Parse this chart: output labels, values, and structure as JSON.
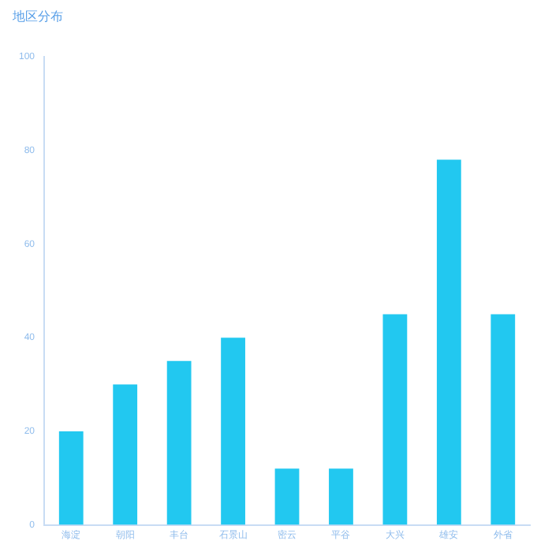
{
  "chart_data": {
    "type": "bar",
    "title": "地区分布",
    "categories": [
      "海淀",
      "朝阳",
      "丰台",
      "石景山",
      "密云",
      "平谷",
      "大兴",
      "雄安",
      "外省"
    ],
    "values": [
      20,
      30,
      35,
      40,
      12,
      12,
      45,
      78,
      45
    ],
    "color": "#22c8f0",
    "ylim": [
      0,
      100
    ],
    "yticks": [
      0,
      20,
      40,
      60,
      80,
      100
    ],
    "grid": false,
    "legend": false
  }
}
